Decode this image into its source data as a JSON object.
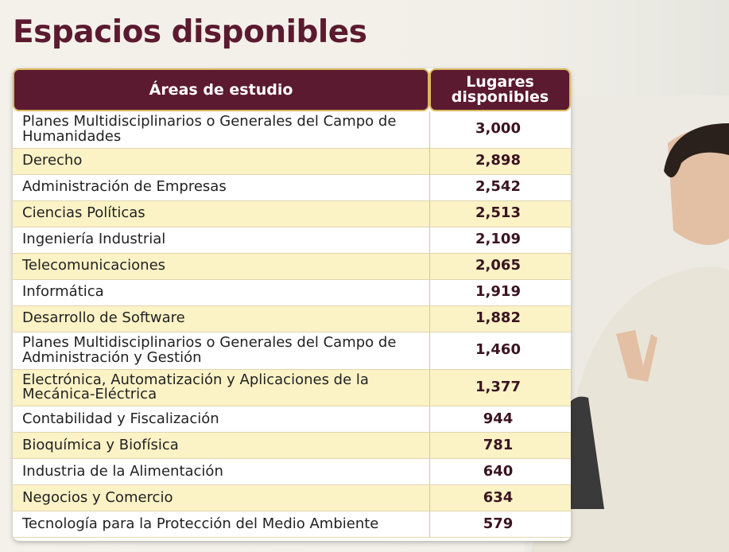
{
  "header": {
    "title": "Espacios disponibles"
  },
  "table": {
    "columns": [
      "Áreas de estudio",
      "Lugares disponibles"
    ],
    "rows": [
      [
        "Planes Multidisciplinarios o Generales del Campo de Humanidades",
        "3,000"
      ],
      [
        "Derecho",
        "2,898"
      ],
      [
        "Administración de Empresas",
        "2,542"
      ],
      [
        "Ciencias Políticas",
        "2,513"
      ],
      [
        "Ingeniería Industrial",
        "2,109"
      ],
      [
        "Telecomunicaciones",
        "2,065"
      ],
      [
        "Informática",
        "1,919"
      ],
      [
        "Desarrollo de Software",
        "1,882"
      ],
      [
        "Planes Multidisciplinarios o Generales del Campo de Administración y Gestión",
        "1,460"
      ],
      [
        "Electrónica, Automatización y Aplicaciones de la Mecánica-Eléctrica",
        "1,377"
      ],
      [
        "Contabilidad y Fiscalización",
        "944"
      ],
      [
        "Bioquímica y Biofísica",
        "781"
      ],
      [
        "Industria de la Alimentación",
        "640"
      ],
      [
        "Negocios y Comercio",
        "634"
      ],
      [
        "Tecnología para la Protección del Medio Ambiente",
        "579"
      ]
    ]
  }
}
